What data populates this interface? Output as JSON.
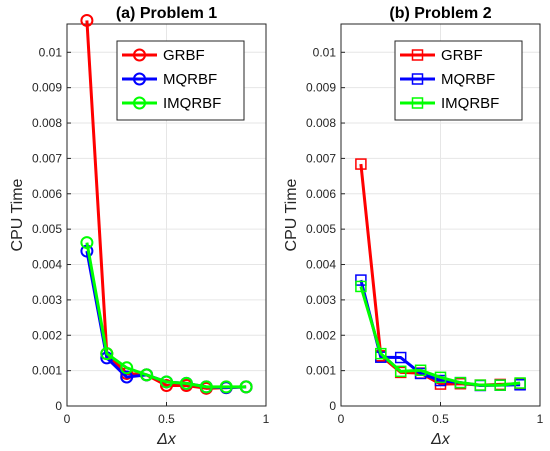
{
  "chart_data": [
    {
      "type": "line",
      "title": "(a) Problem 1",
      "xlabel": "Δx",
      "ylabel": "CPU Time",
      "xlim": [
        0,
        1
      ],
      "ylim": [
        0,
        0.0108
      ],
      "xticks": [
        "0",
        "0.5",
        "1"
      ],
      "yticks": [
        "0",
        "0.001",
        "0.002",
        "0.003",
        "0.004",
        "0.005",
        "0.006",
        "0.007",
        "0.008",
        "0.009",
        "0.01"
      ],
      "grid": true,
      "legend_position": "top-right",
      "marker": "circle",
      "x": [
        0.1,
        0.2,
        0.3,
        0.4,
        0.5,
        0.6,
        0.7,
        0.8,
        0.9
      ],
      "series": [
        {
          "name": "GRBF",
          "color": "#ff0000",
          "values": [
            0.0109,
            0.00148,
            0.00092,
            0.00088,
            0.00058,
            0.00058,
            0.0005,
            0.00052,
            0.00054
          ]
        },
        {
          "name": "MQRBF",
          "color": "#0000ff",
          "values": [
            0.00438,
            0.00136,
            0.00082,
            0.00088,
            0.00068,
            0.00064,
            0.00054,
            0.00052,
            0.00054
          ]
        },
        {
          "name": "IMQRBF",
          "color": "#00ff00",
          "values": [
            0.00462,
            0.00148,
            0.00108,
            0.00088,
            0.00068,
            0.00064,
            0.00054,
            0.00054,
            0.00054
          ]
        }
      ]
    },
    {
      "type": "line",
      "title": "(b) Problem 2",
      "xlabel": "Δx",
      "ylabel": "CPU Time",
      "xlim": [
        0,
        1
      ],
      "ylim": [
        0,
        0.0108
      ],
      "xticks": [
        "0",
        "0.5",
        "1"
      ],
      "yticks": [
        "0",
        "0.001",
        "0.002",
        "0.003",
        "0.004",
        "0.005",
        "0.006",
        "0.007",
        "0.008",
        "0.009",
        "0.01"
      ],
      "grid": true,
      "legend_position": "top-right",
      "marker": "square",
      "x": [
        0.1,
        0.2,
        0.3,
        0.4,
        0.5,
        0.6,
        0.7,
        0.8,
        0.9
      ],
      "series": [
        {
          "name": "GRBF",
          "color": "#ff0000",
          "values": [
            0.00684,
            0.00142,
            0.00095,
            0.00093,
            0.00062,
            0.00063,
            0.00059,
            0.00061,
            0.00062
          ]
        },
        {
          "name": "MQRBF",
          "color": "#0000ff",
          "values": [
            0.00356,
            0.00138,
            0.00137,
            0.00092,
            0.00072,
            0.00066,
            0.00058,
            0.00059,
            0.0006
          ]
        },
        {
          "name": "IMQRBF",
          "color": "#00ff00",
          "values": [
            0.00338,
            0.00148,
            0.00098,
            0.00101,
            0.00081,
            0.00066,
            0.00059,
            0.00059,
            0.00065
          ]
        }
      ]
    }
  ]
}
